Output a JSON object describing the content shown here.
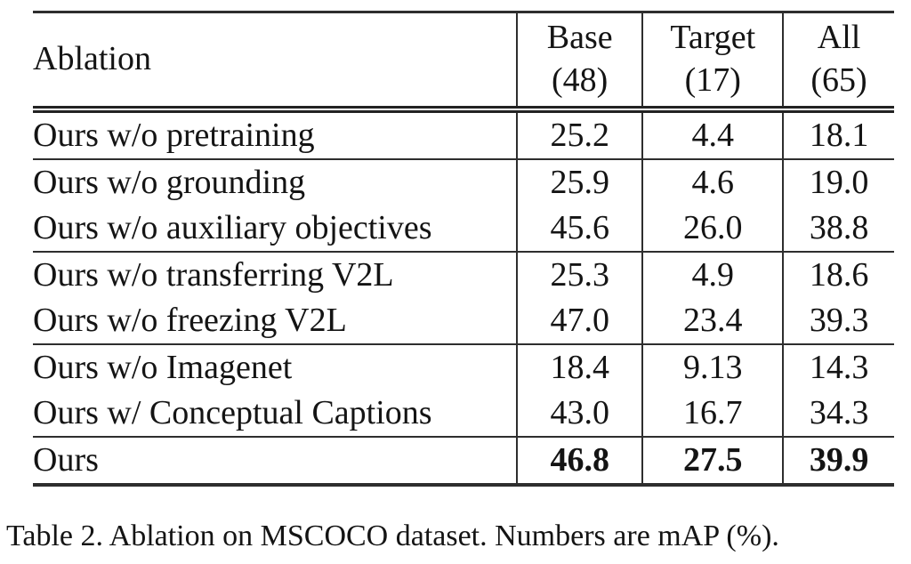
{
  "page": {
    "background_color": "#ffffff",
    "text_color": "#141414",
    "rule_color": "#2e2e2e"
  },
  "table": {
    "header": {
      "ablation": "Ablation",
      "columns": [
        {
          "name": "Base",
          "count": "(48)"
        },
        {
          "name": "Target",
          "count": "(17)"
        },
        {
          "name": "All",
          "count": "(65)"
        }
      ]
    },
    "rows": [
      {
        "label": "Ours w/o pretraining",
        "values": [
          "25.2",
          "4.4",
          "18.1"
        ],
        "emphasis": false
      },
      {
        "label": "Ours w/o grounding",
        "values": [
          "25.9",
          "4.6",
          "19.0"
        ],
        "emphasis": false
      },
      {
        "label": "Ours w/o auxiliary objectives",
        "values": [
          "45.6",
          "26.0",
          "38.8"
        ],
        "emphasis": false
      },
      {
        "label": "Ours w/o transferring V2L",
        "values": [
          "25.3",
          "4.9",
          "18.6"
        ],
        "emphasis": false
      },
      {
        "label": "Ours w/o freezing V2L",
        "values": [
          "47.0",
          "23.4",
          "39.3"
        ],
        "emphasis": false
      },
      {
        "label": "Ours w/o Imagenet",
        "values": [
          "18.4",
          "9.13",
          "14.3"
        ],
        "emphasis": false
      },
      {
        "label": "Ours w/ Conceptual Captions",
        "values": [
          "43.0",
          "16.7",
          "34.3"
        ],
        "emphasis": false
      },
      {
        "label": "Ours",
        "values": [
          "46.8",
          "27.5",
          "39.9"
        ],
        "emphasis": true
      }
    ],
    "caption": "Table 2. Ablation on MSCOCO dataset. Numbers are mAP (%)."
  },
  "chart_data": {
    "type": "table",
    "title": "Table 2. Ablation on MSCOCO dataset. Numbers are mAP (%).",
    "columns": [
      "Ablation",
      "Base (48)",
      "Target (17)",
      "All (65)"
    ],
    "categories": [
      "Ours w/o pretraining",
      "Ours w/o grounding",
      "Ours w/o auxiliary objectives",
      "Ours w/o transferring V2L",
      "Ours w/o freezing V2L",
      "Ours w/o Imagenet",
      "Ours w/ Conceptual Captions",
      "Ours"
    ],
    "series": [
      {
        "name": "Base (48)",
        "values": [
          25.2,
          25.9,
          45.6,
          25.3,
          47.0,
          18.4,
          43.0,
          46.8
        ]
      },
      {
        "name": "Target (17)",
        "values": [
          4.4,
          4.6,
          26.0,
          4.9,
          23.4,
          9.13,
          16.7,
          27.5
        ]
      },
      {
        "name": "All (65)",
        "values": [
          18.1,
          19.0,
          38.8,
          18.6,
          39.3,
          14.3,
          34.3,
          39.9
        ]
      }
    ]
  }
}
